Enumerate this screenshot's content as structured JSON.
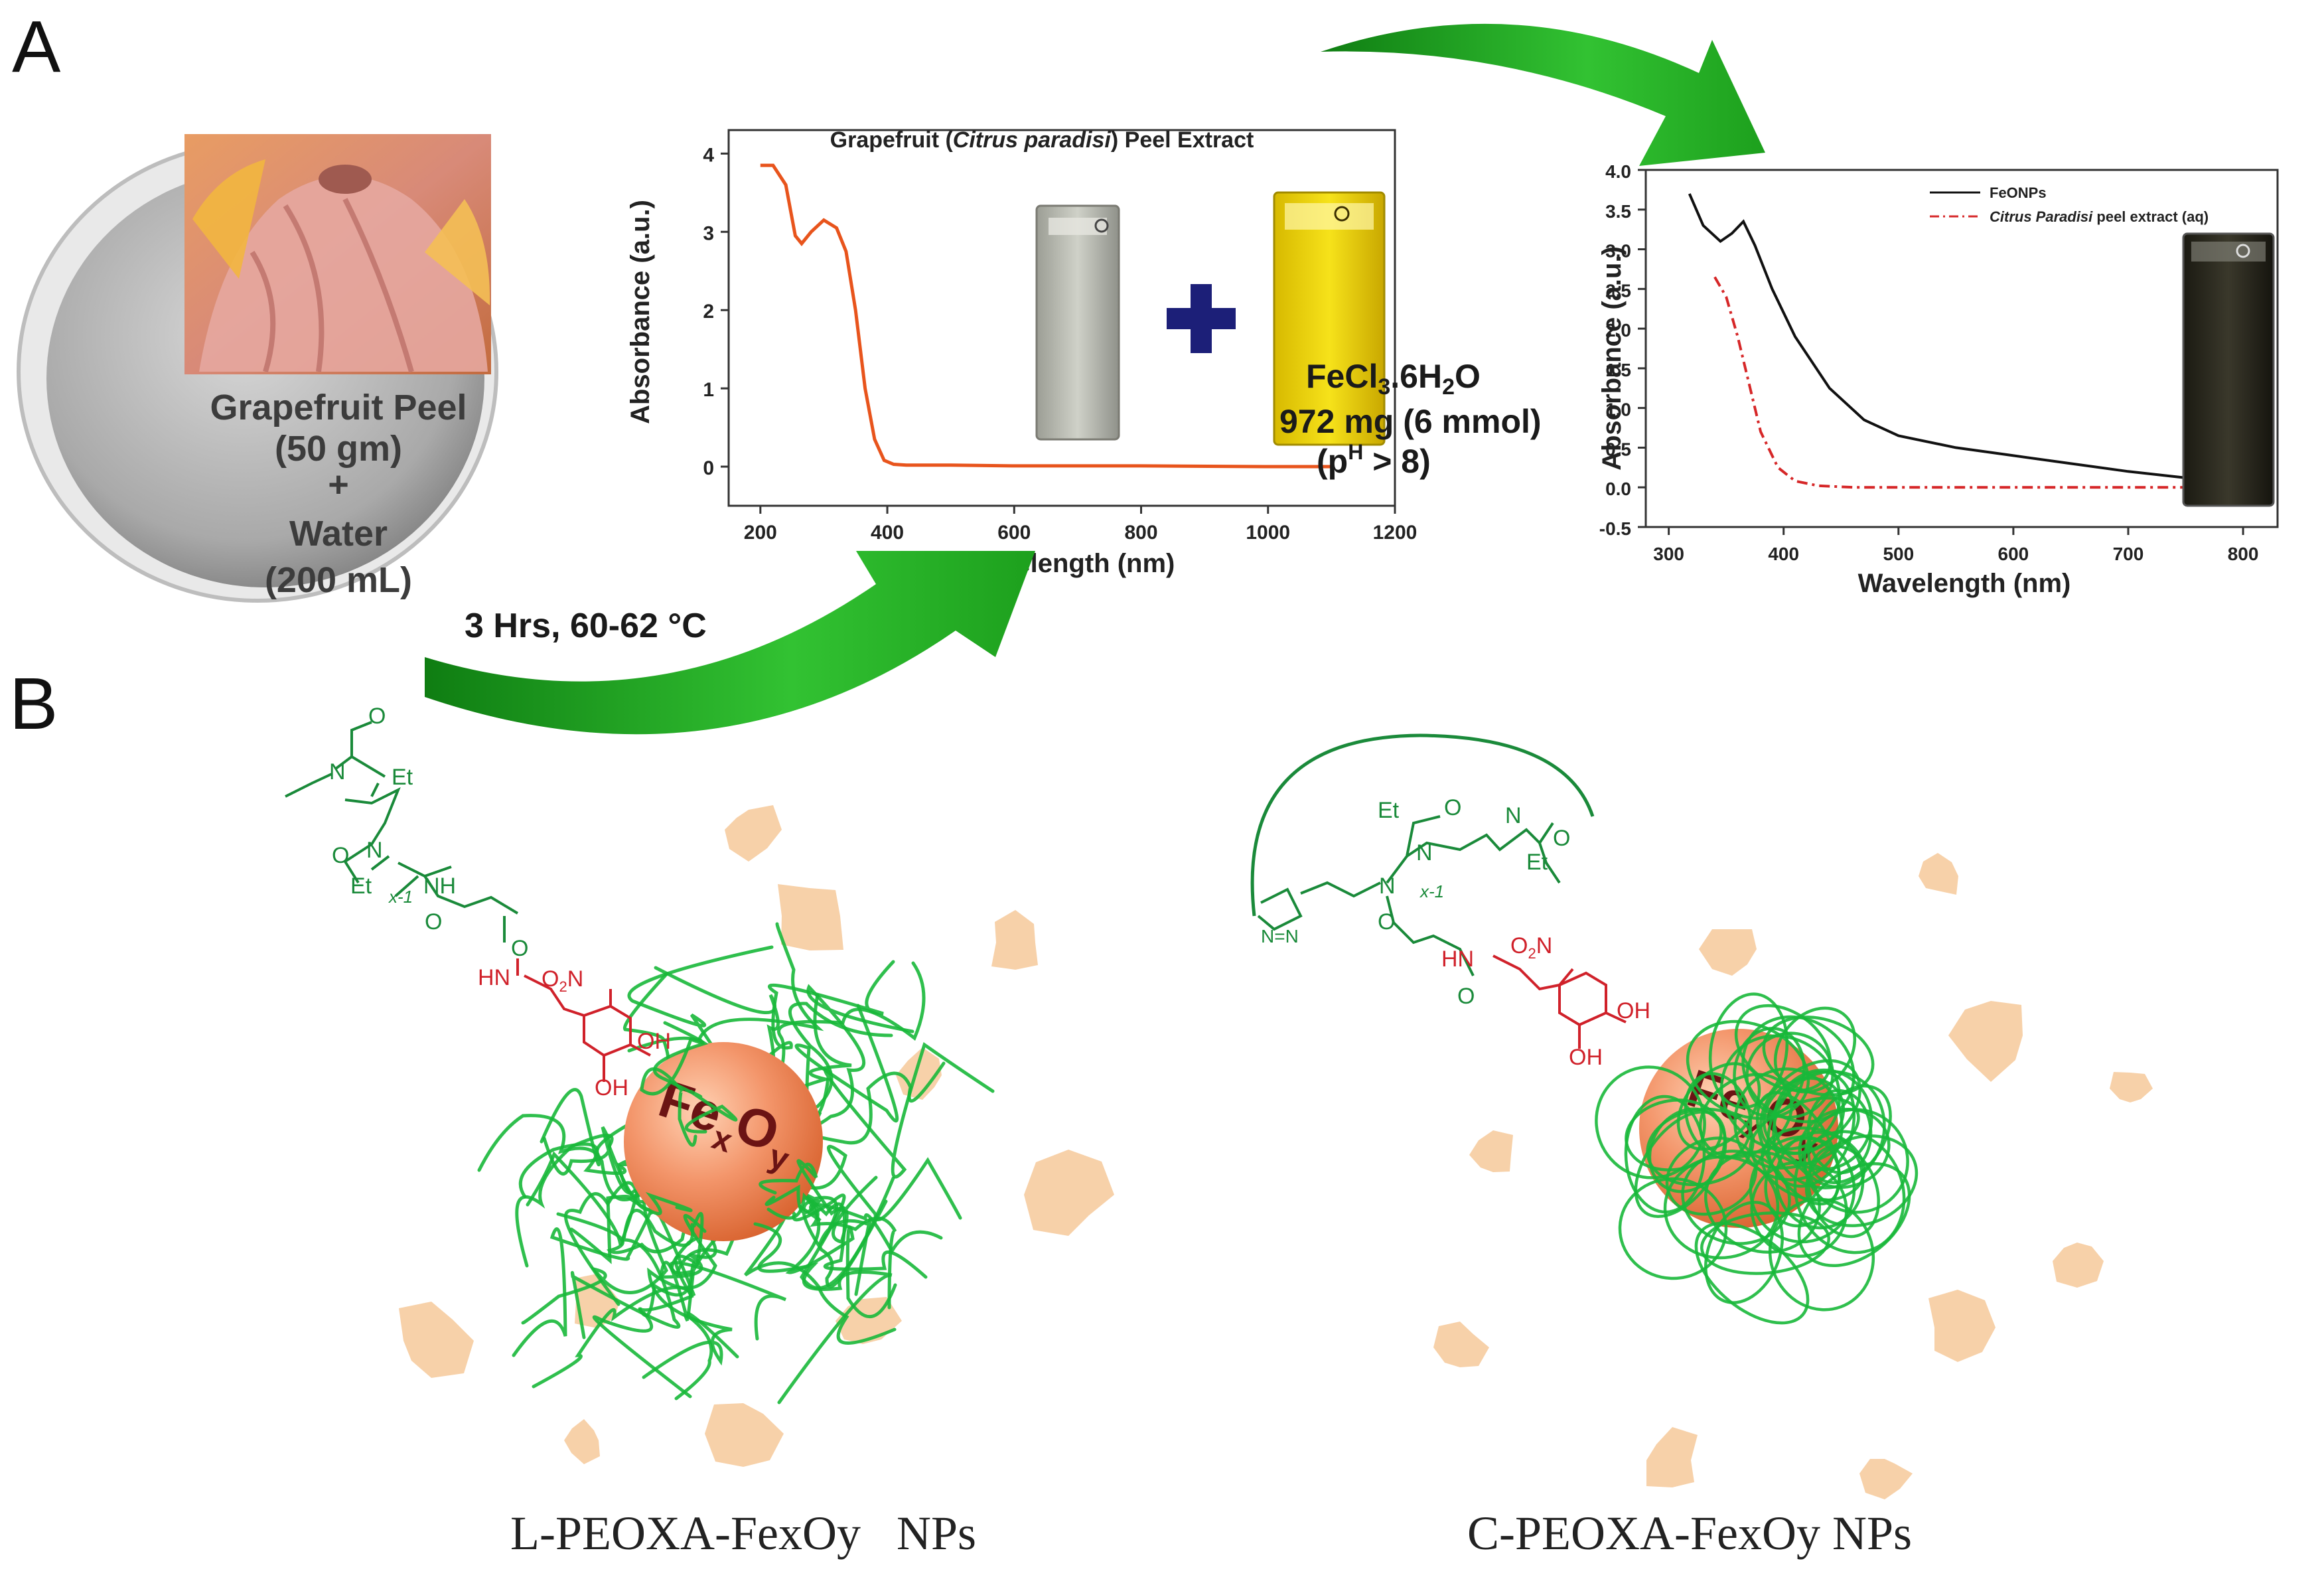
{
  "panels": {
    "a_label": "A",
    "b_label": "B"
  },
  "panel_a": {
    "peel": {
      "line1": "Grapefruit Peel",
      "line2": "(50 gm)",
      "line3": "+",
      "line4": "Water",
      "line5": "(200 mL)"
    },
    "condition": "3 Hrs, 60-62 °C",
    "reagent": {
      "formula_main": "FeCl",
      "formula_sub1": "3",
      "formula_mid": ".6H",
      "formula_sub2": "2",
      "formula_end": "O",
      "amount": "972 mg (6 mmol)",
      "ph_prefix": "(p",
      "ph_sup": "H",
      "ph_suffix": " > 8)"
    },
    "plus_symbol": "+"
  },
  "chart_data": [
    {
      "type": "line",
      "title_parts": [
        "Grapefruit (",
        "Citrus paradisi",
        ") Peel Extract"
      ],
      "xlabel": "Wavelength (nm)",
      "ylabel": "Absorbance (a.u.)",
      "xlim": [
        150,
        1200
      ],
      "ylim": [
        -0.5,
        4.3
      ],
      "xticks": [
        200,
        400,
        600,
        800,
        1000,
        1200
      ],
      "yticks": [
        0,
        1,
        2,
        3,
        4
      ],
      "series": [
        {
          "color": "#e8541c",
          "x": [
            200,
            220,
            240,
            255,
            265,
            280,
            300,
            320,
            335,
            350,
            365,
            380,
            395,
            410,
            430,
            500,
            600,
            800,
            1000,
            1100
          ],
          "y": [
            3.85,
            3.85,
            3.6,
            2.95,
            2.85,
            3.0,
            3.15,
            3.05,
            2.75,
            2.0,
            1.0,
            0.35,
            0.08,
            0.03,
            0.02,
            0.02,
            0.01,
            0.01,
            0.0,
            0.0
          ]
        }
      ]
    },
    {
      "type": "line",
      "xlabel": "Wavelength (nm)",
      "ylabel": "Absorbance (a.u.)",
      "xlim": [
        280,
        830
      ],
      "ylim": [
        -0.5,
        4.0
      ],
      "xticks": [
        300,
        400,
        500,
        600,
        700,
        800
      ],
      "yticks": [
        -0.5,
        0.0,
        0.5,
        1.0,
        1.5,
        2.0,
        2.5,
        3.0,
        3.5,
        4.0
      ],
      "ytick_labels": [
        "-0.5",
        "0.0",
        "0.5",
        "1.0",
        "1.5",
        "2.0",
        "2.5",
        "3.0",
        "3.5",
        "4.0"
      ],
      "legend_position": "top-right",
      "series": [
        {
          "name": "FeONPs",
          "color": "#111111",
          "x": [
            318,
            330,
            345,
            355,
            365,
            375,
            390,
            410,
            440,
            470,
            500,
            550,
            600,
            650,
            700,
            750,
            800
          ],
          "y": [
            3.7,
            3.3,
            3.1,
            3.2,
            3.35,
            3.05,
            2.5,
            1.9,
            1.25,
            0.85,
            0.65,
            0.5,
            0.4,
            0.3,
            0.2,
            0.12,
            0.08
          ]
        },
        {
          "name_parts": [
            "Citrus Paradisi",
            " peel extract (aq)"
          ],
          "color": "#d62728",
          "dash": true,
          "x": [
            340,
            350,
            360,
            370,
            380,
            395,
            410,
            430,
            460,
            500,
            600,
            700,
            800
          ],
          "y": [
            2.65,
            2.4,
            1.9,
            1.3,
            0.7,
            0.25,
            0.08,
            0.02,
            0.0,
            0.0,
            0.0,
            0.0,
            0.0
          ]
        }
      ]
    }
  ],
  "panel_b": {
    "left": {
      "caption": "L-PEOXA-FexOy   NPs",
      "core_fe": "Fe",
      "core_x": "x",
      "core_o": "O",
      "core_y": "y",
      "chem": {
        "et1": "Et",
        "et2": "Et",
        "nh": "NH",
        "n1": "N",
        "n2": "N",
        "hn": "HN",
        "o2n": "O",
        "o2n_sub": "2",
        "o2n_n": "N",
        "oh1": "OH",
        "oh2": "OH",
        "xm1": "x-1",
        "o1": "O",
        "o2": "O",
        "o3": "O",
        "o4": "O"
      }
    },
    "right": {
      "caption": "C-PEOXA-FexOy NPs",
      "core_fe": "Fe",
      "core_x": "x",
      "core_o": "O",
      "core_y": "y",
      "chem": {
        "et1": "Et",
        "et2": "Et",
        "n1": "N",
        "n2": "N",
        "n3": "N",
        "triazole": "N=N",
        "hn": "HN",
        "o2n": "O",
        "o2n_sub": "2",
        "o2n_n": "N",
        "oh1": "OH",
        "oh2": "OH",
        "xm1": "x-1",
        "o1": "O",
        "o2": "O",
        "o3": "O",
        "o4": "O"
      }
    }
  },
  "colors": {
    "arrow_green": "#2fb52f",
    "polymer_green": "#18b83a",
    "chem_green": "#1a8a3a",
    "chem_red": "#d0212a",
    "core_orange": "#f08a5a",
    "flake": "#f6c99a",
    "navy_plus": "#1c1f78"
  }
}
